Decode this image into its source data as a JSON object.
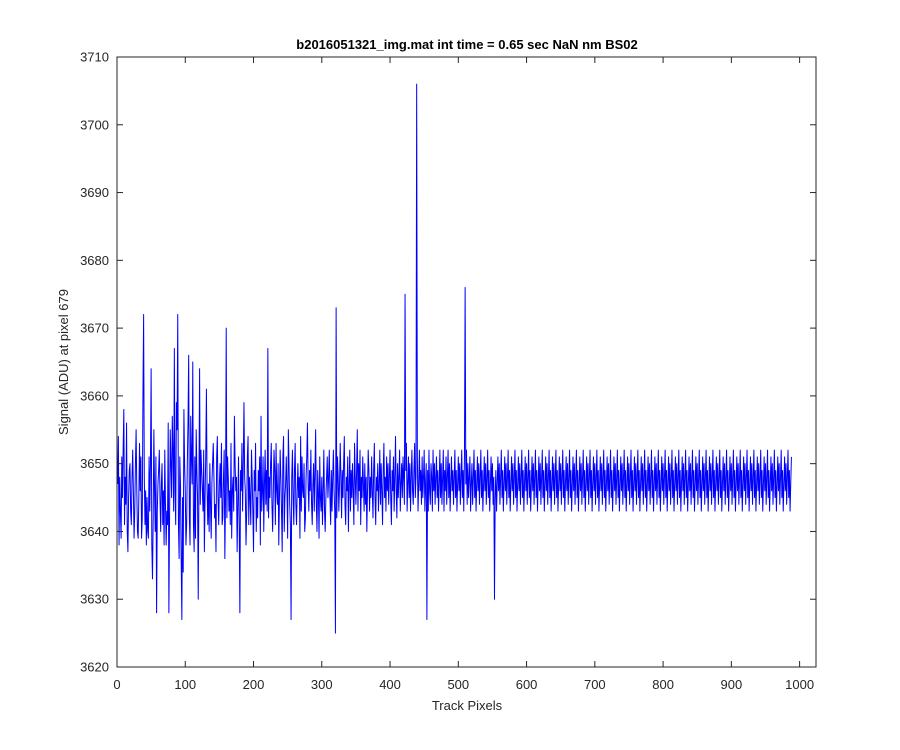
{
  "chart_data": {
    "type": "line",
    "title": "b2016051321_img.mat int time = 0.65 sec  NaN nm BS02",
    "xlabel": "Track Pixels",
    "ylabel": "Signal (ADU) at pixel 679",
    "xlim": [
      0,
      1024
    ],
    "ylim": [
      3620,
      3710
    ],
    "xticks": [
      0,
      100,
      200,
      300,
      400,
      500,
      600,
      700,
      800,
      900,
      1000
    ],
    "yticks": [
      3620,
      3630,
      3640,
      3650,
      3660,
      3670,
      3680,
      3690,
      3700,
      3710
    ],
    "grid": false,
    "legend": "none",
    "series": [
      {
        "color": "#0000ff",
        "x_start": 1,
        "x_step": 1,
        "values": [
          3647,
          3654,
          3638,
          3648,
          3643,
          3639,
          3651,
          3645,
          3652,
          3658,
          3641,
          3648,
          3644,
          3656,
          3640,
          3637,
          3645,
          3649,
          3650,
          3643,
          3641,
          3648,
          3652,
          3646,
          3639,
          3643,
          3650,
          3655,
          3646,
          3640,
          3639,
          3645,
          3653,
          3646,
          3651,
          3639,
          3642,
          3660,
          3672,
          3648,
          3641,
          3646,
          3638,
          3645,
          3640,
          3639,
          3651,
          3643,
          3650,
          3664,
          3638,
          3633,
          3642,
          3655,
          3646,
          3640,
          3651,
          3628,
          3643,
          3647,
          3649,
          3652,
          3645,
          3640,
          3647,
          3650,
          3641,
          3646,
          3638,
          3652,
          3644,
          3638,
          3643,
          3641,
          3656,
          3628,
          3642,
          3655,
          3650,
          3645,
          3657,
          3652,
          3643,
          3667,
          3646,
          3641,
          3659,
          3655,
          3672,
          3641,
          3636,
          3651,
          3647,
          3636,
          3627,
          3645,
          3634,
          3658,
          3650,
          3646,
          3638,
          3641,
          3650,
          3656,
          3666,
          3642,
          3638,
          3657,
          3651,
          3647,
          3665,
          3641,
          3637,
          3651,
          3639,
          3655,
          3649,
          3645,
          3630,
          3646,
          3664,
          3644,
          3652,
          3649,
          3646,
          3643,
          3652,
          3637,
          3645,
          3651,
          3661,
          3646,
          3641,
          3647,
          3640,
          3650,
          3644,
          3639,
          3647,
          3650,
          3653,
          3648,
          3642,
          3644,
          3637,
          3651,
          3654,
          3645,
          3641,
          3647,
          3650,
          3645,
          3653,
          3641,
          3642,
          3648,
          3652,
          3636,
          3645,
          3670,
          3642,
          3651,
          3648,
          3643,
          3646,
          3641,
          3653,
          3639,
          3646,
          3648,
          3643,
          3657,
          3650,
          3646,
          3648,
          3637,
          3644,
          3651,
          3641,
          3628,
          3649,
          3646,
          3653,
          3643,
          3650,
          3659,
          3648,
          3646,
          3638,
          3643,
          3651,
          3654,
          3641,
          3648,
          3645,
          3641,
          3652,
          3648,
          3643,
          3637,
          3649,
          3646,
          3653,
          3640,
          3645,
          3642,
          3649,
          3646,
          3651,
          3638,
          3657,
          3643,
          3646,
          3651,
          3640,
          3647,
          3652,
          3644,
          3649,
          3643,
          3667,
          3642,
          3648,
          3645,
          3650,
          3653,
          3644,
          3640,
          3646,
          3652,
          3649,
          3641,
          3653,
          3646,
          3644,
          3650,
          3638,
          3645,
          3652,
          3648,
          3643,
          3637,
          3651,
          3654,
          3640,
          3645,
          3647,
          3651,
          3646,
          3639,
          3655,
          3650,
          3644,
          3641,
          3627,
          3648,
          3652,
          3645,
          3641,
          3649,
          3653,
          3644,
          3641,
          3646,
          3650,
          3645,
          3648,
          3639,
          3654,
          3643,
          3651,
          3646,
          3645,
          3650,
          3640,
          3642,
          3648,
          3651,
          3656,
          3647,
          3643,
          3649,
          3646,
          3652,
          3644,
          3641,
          3647,
          3650,
          3643,
          3649,
          3655,
          3644,
          3640,
          3649,
          3646,
          3639,
          3651,
          3645,
          3643,
          3648,
          3641,
          3646,
          3652,
          3643,
          3640,
          3645,
          3648,
          3651,
          3645,
          3648,
          3652,
          3645,
          3641,
          3649,
          3643,
          3648,
          3652,
          3646,
          3643,
          3625,
          3673,
          3642,
          3651,
          3648,
          3643,
          3647,
          3653,
          3648,
          3642,
          3649,
          3645,
          3650,
          3654,
          3644,
          3641,
          3648,
          3646,
          3651,
          3640,
          3647,
          3652,
          3643,
          3649,
          3645,
          3650,
          3646,
          3641,
          3653,
          3648,
          3644,
          3649,
          3655,
          3643,
          3650,
          3646,
          3652,
          3641,
          3648,
          3645,
          3651,
          3647,
          3643,
          3650,
          3644,
          3648,
          3640,
          3646,
          3652,
          3649,
          3643,
          3648,
          3645,
          3651,
          3646,
          3642,
          3649,
          3653,
          3645,
          3641,
          3648,
          3646,
          3650,
          3643,
          3647,
          3652,
          3644,
          3650,
          3646,
          3641,
          3649,
          3653,
          3645,
          3648,
          3643,
          3651,
          3646,
          3650,
          3644,
          3648,
          3652,
          3645,
          3641,
          3649,
          3646,
          3651,
          3643,
          3648,
          3654,
          3646,
          3642,
          3650,
          3645,
          3648,
          3652,
          3643,
          3647,
          3650,
          3645,
          3651,
          3648,
          3644,
          3675,
          3649,
          3653,
          3643,
          3647,
          3651,
          3645,
          3650,
          3643,
          3648,
          3652,
          3646,
          3644,
          3649,
          3653,
          3645,
          3648,
          3706,
          3651,
          3643,
          3647,
          3652,
          3646,
          3649,
          3644,
          3651,
          3645,
          3648,
          3652,
          3643,
          3647,
          3650,
          3627,
          3649,
          3643,
          3652,
          3646,
          3644,
          3650,
          3648,
          3643,
          3652,
          3646,
          3650,
          3644,
          3648,
          3651,
          3645,
          3649,
          3643,
          3647,
          3652,
          3645,
          3650,
          3644,
          3648,
          3652,
          3643,
          3649,
          3646,
          3651,
          3644,
          3648,
          3652,
          3645,
          3650,
          3643,
          3647,
          3651,
          3646,
          3649,
          3644,
          3648,
          3652,
          3645,
          3649,
          3643,
          3647,
          3651,
          3646,
          3650,
          3644,
          3648,
          3652,
          3645,
          3649,
          3643,
          3651,
          3676,
          3647,
          3652,
          3644,
          3650,
          3645,
          3648,
          3651,
          3643,
          3647,
          3650,
          3644,
          3648,
          3652,
          3645,
          3649,
          3643,
          3647,
          3651,
          3646,
          3650,
          3644,
          3648,
          3652,
          3645,
          3649,
          3643,
          3647,
          3651,
          3646,
          3650,
          3644,
          3648,
          3652,
          3645,
          3649,
          3643,
          3647,
          3651,
          3646,
          3650,
          3644,
          3648,
          3630,
          3645,
          3649,
          3643,
          3647,
          3651,
          3646,
          3650,
          3644,
          3648,
          3652,
          3645,
          3649,
          3643,
          3647,
          3651,
          3646,
          3650,
          3644,
          3648,
          3652,
          3645,
          3649,
          3643,
          3647,
          3651,
          3646,
          3650,
          3644,
          3648,
          3652,
          3645,
          3649,
          3643,
          3647,
          3651,
          3646,
          3650,
          3644,
          3648,
          3652,
          3645,
          3649,
          3643,
          3647,
          3651,
          3646,
          3650,
          3644,
          3648,
          3652,
          3645,
          3649,
          3643,
          3647,
          3651,
          3646,
          3650,
          3644,
          3648,
          3652,
          3645,
          3649,
          3643,
          3647,
          3651,
          3646,
          3650,
          3644,
          3648,
          3652,
          3645,
          3649,
          3643,
          3647,
          3651,
          3646,
          3650,
          3644,
          3648,
          3652,
          3645,
          3649,
          3643,
          3647,
          3651,
          3646,
          3650,
          3644,
          3648,
          3652,
          3645,
          3649,
          3643,
          3647,
          3651,
          3646,
          3650,
          3644,
          3648,
          3652,
          3645,
          3649,
          3643,
          3647,
          3651,
          3646,
          3650,
          3644,
          3648,
          3652,
          3645,
          3649,
          3643,
          3647,
          3651,
          3646,
          3650,
          3644,
          3648,
          3652,
          3645,
          3649,
          3643,
          3647,
          3651,
          3646,
          3650,
          3644,
          3648,
          3652,
          3645,
          3649,
          3643,
          3647,
          3651,
          3646,
          3650,
          3644,
          3648,
          3652,
          3645,
          3649,
          3643,
          3647,
          3651,
          3646,
          3650,
          3644,
          3648,
          3652,
          3645,
          3649,
          3643,
          3647,
          3651,
          3646,
          3650,
          3644,
          3648,
          3652,
          3645,
          3649,
          3643,
          3647,
          3651,
          3646,
          3650,
          3644,
          3648,
          3652,
          3645,
          3649,
          3643,
          3647,
          3651,
          3646,
          3650,
          3644,
          3648,
          3652,
          3645,
          3649,
          3643,
          3647,
          3651,
          3646,
          3650,
          3644,
          3648,
          3652,
          3645,
          3649,
          3643,
          3647,
          3651,
          3646,
          3650,
          3644,
          3648,
          3652,
          3645,
          3649,
          3643,
          3647,
          3651,
          3646,
          3650,
          3644,
          3648,
          3652,
          3645,
          3649,
          3643,
          3647,
          3651,
          3646,
          3650,
          3644,
          3648,
          3652,
          3645,
          3649,
          3643,
          3647,
          3651,
          3646,
          3650,
          3644,
          3648,
          3652,
          3645,
          3649,
          3643,
          3647,
          3651,
          3646,
          3650,
          3644,
          3648,
          3652,
          3645,
          3649,
          3643,
          3647,
          3651,
          3646,
          3650,
          3644,
          3648,
          3652,
          3645,
          3649,
          3643,
          3647,
          3651,
          3646,
          3650,
          3644,
          3648,
          3652,
          3645,
          3649,
          3643,
          3647,
          3651,
          3646,
          3650,
          3644,
          3648,
          3652,
          3645,
          3649,
          3643,
          3647,
          3651,
          3646,
          3650,
          3644,
          3648,
          3652,
          3645,
          3649,
          3643,
          3647,
          3651,
          3646,
          3650,
          3644,
          3648,
          3652,
          3645,
          3649,
          3643,
          3647,
          3651,
          3646,
          3650,
          3644,
          3648,
          3652,
          3645,
          3649,
          3643,
          3647,
          3651,
          3646,
          3650,
          3644,
          3648,
          3652,
          3645,
          3649,
          3643,
          3647,
          3651,
          3646,
          3650,
          3644,
          3648,
          3652,
          3645,
          3649,
          3643,
          3647,
          3651,
          3646,
          3650,
          3644,
          3648,
          3652,
          3645,
          3649,
          3643,
          3647,
          3651,
          3646,
          3650,
          3644,
          3648,
          3652,
          3645,
          3649,
          3643,
          3647,
          3651,
          3646,
          3650,
          3644,
          3648,
          3652,
          3645,
          3649,
          3643,
          3647,
          3651,
          3646,
          3650,
          3644,
          3648,
          3652,
          3645,
          3649,
          3643,
          3647,
          3651,
          3646,
          3650,
          3644,
          3648,
          3652,
          3645,
          3649,
          3643,
          3647,
          3651,
          3646,
          3650,
          3644,
          3648,
          3652,
          3645,
          3649,
          3643,
          3647,
          3651,
          3646,
          3650,
          3644,
          3648,
          3652,
          3645,
          3649,
          3643,
          3647,
          3651,
          3646,
          3650,
          3644,
          3648,
          3652,
          3645,
          3649,
          3643,
          3647,
          3651,
          3646,
          3650,
          3644,
          3648,
          3652,
          3645,
          3649,
          3643,
          3647,
          3651,
          3646,
          3650,
          3644,
          3648,
          3652,
          3645,
          3649,
          3643,
          3647,
          3651,
          3646,
          3650,
          3644,
          3648,
          3652,
          3645,
          3649,
          3643,
          3647,
          3651
        ]
      }
    ]
  }
}
